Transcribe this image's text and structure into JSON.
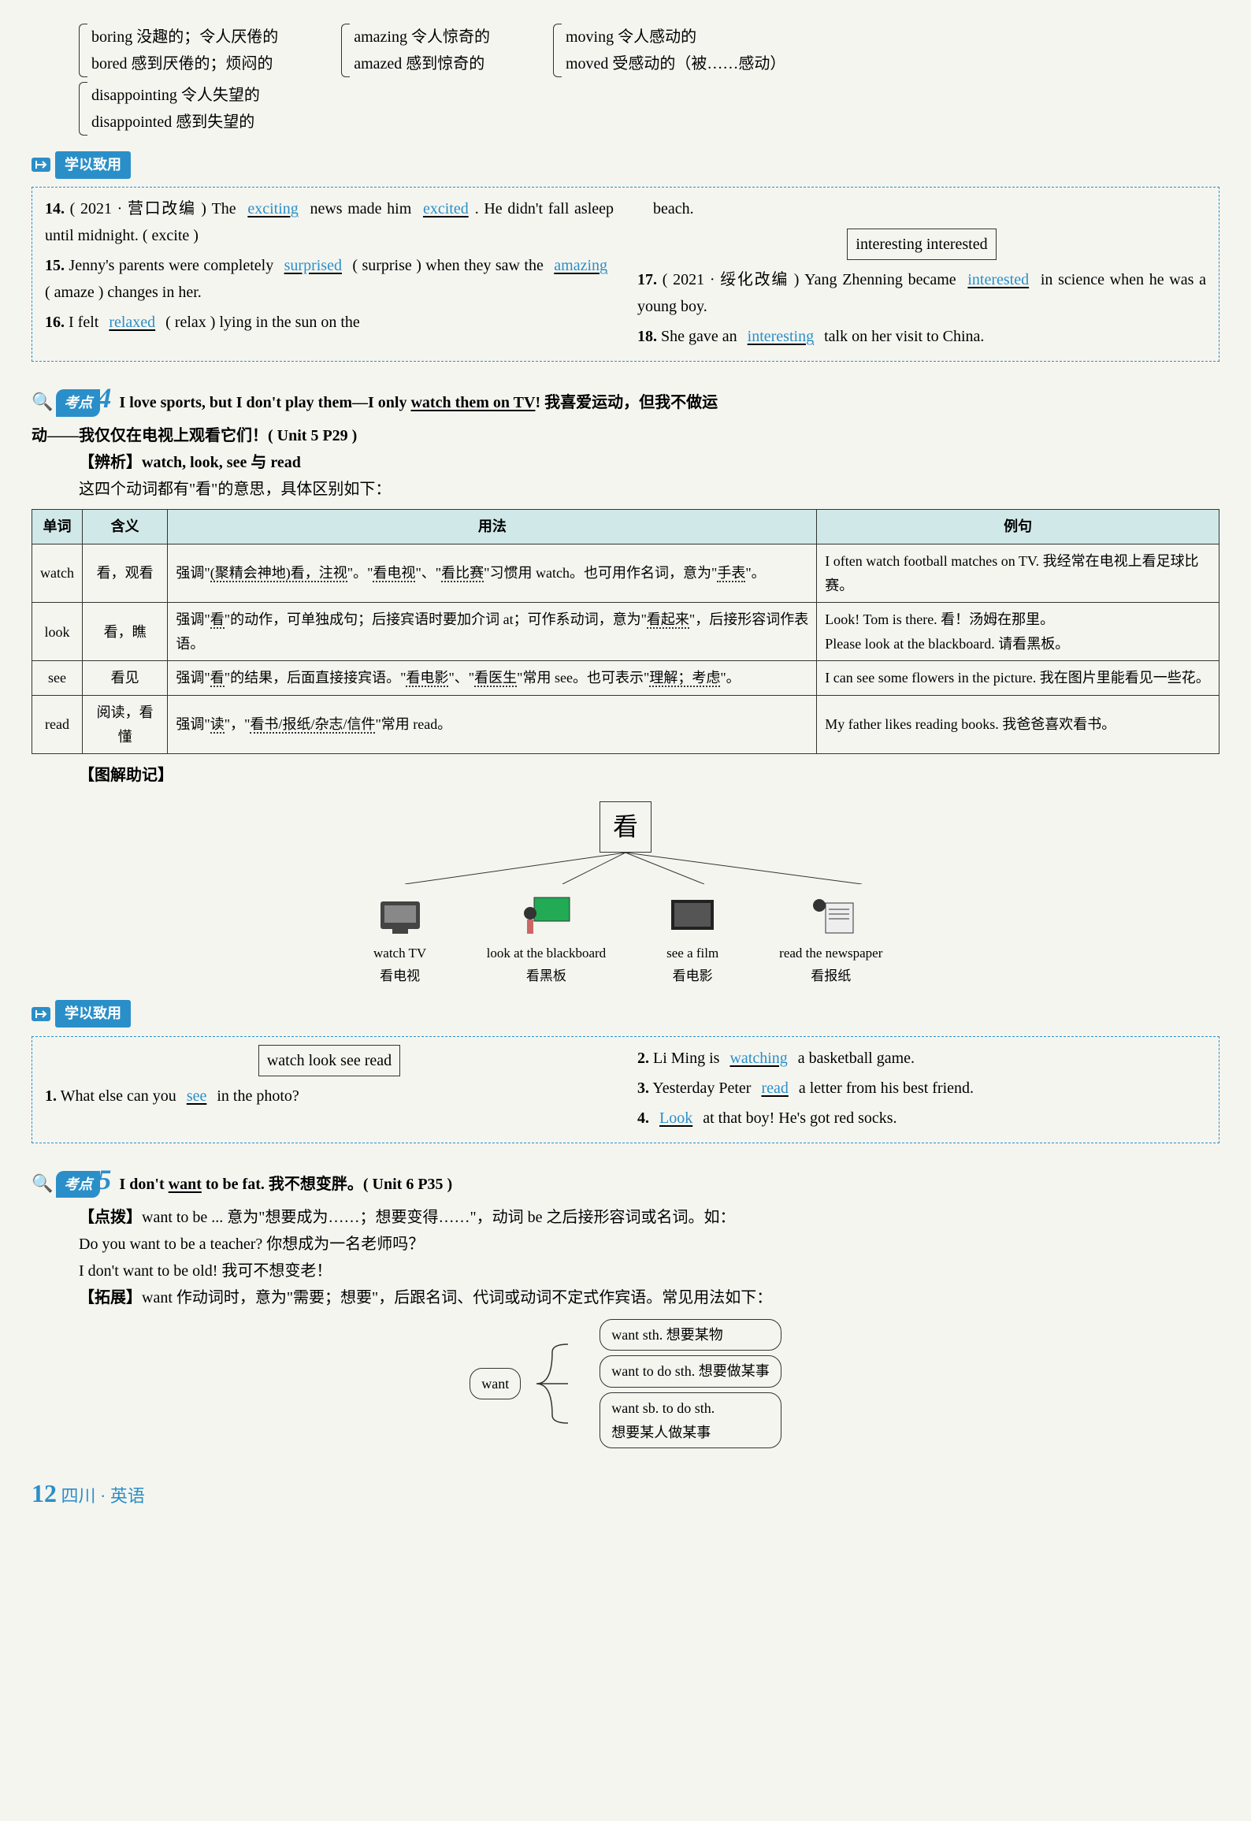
{
  "word_pairs": {
    "col1": [
      {
        "top": "boring 没趣的；令人厌倦的",
        "bottom": "bored 感到厌倦的；烦闷的"
      },
      {
        "top": "disappointing 令人失望的",
        "bottom": "disappointed 感到失望的"
      }
    ],
    "col2": [
      {
        "top": "amazing 令人惊奇的",
        "bottom": "amazed 感到惊奇的"
      }
    ],
    "col3": [
      {
        "top": "moving 令人感动的",
        "bottom": "moved 受感动的（被……感动）"
      }
    ]
  },
  "practice1_tag": "学以致用",
  "practice1": {
    "left": [
      {
        "num": "14.",
        "pre": "( 2021 · 营口改编 ) The ",
        "ans1": "exciting",
        "mid1": " news made him ",
        "ans2": "excited",
        "post": ". He didn't fall asleep until midnight. ( excite )"
      },
      {
        "num": "15.",
        "pre": "Jenny's parents were completely ",
        "ans1": "surprised",
        "mid1": " ( surprise ) when they saw the ",
        "ans2": "amazing",
        "post": " ( amaze ) changes in her."
      },
      {
        "num": "16.",
        "pre": "I felt ",
        "ans1": "relaxed",
        "post": " ( relax ) lying in the sun on the"
      }
    ],
    "right_top": "beach.",
    "right_box": "interesting   interested",
    "right": [
      {
        "num": "17.",
        "pre": "( 2021 · 绥化改编 ) Yang Zhenning became ",
        "ans1": "interested",
        "post": " in science when he was a young boy."
      },
      {
        "num": "18.",
        "pre": "She gave an ",
        "ans1": "interesting",
        "post": " talk on her visit to China."
      }
    ]
  },
  "kaodian4": {
    "label": "考点",
    "num": "4",
    "sentence_en": "I love sports, but I don't play them—I only ",
    "sentence_u": "watch them on TV",
    "sentence_cn": "! 我喜爱运动，但我不做运",
    "line2": "动——我仅仅在电视上观看它们！( Unit 5 P29 )",
    "bianxi_label": "【辨析】",
    "bianxi_words": "watch, look, see 与 read",
    "bianxi_intro": "这四个动词都有\"看\"的意思，具体区别如下："
  },
  "table": {
    "headers": [
      "单词",
      "含义",
      "用法",
      "例句"
    ],
    "rows": [
      {
        "word": "watch",
        "meaning": "看，观看",
        "usage": "强调\"(聚精会神地)看，注视\"。\"看电视\"、\"看比赛\"习惯用 watch。也可用作名词，意为\"手表\"。",
        "example": "I often watch football matches on TV. 我经常在电视上看足球比赛。"
      },
      {
        "word": "look",
        "meaning": "看，瞧",
        "usage": "强调\"看\"的动作，可单独成句；后接宾语时要加介词 at；可作系动词，意为\"看起来\"，后接形容词作表语。",
        "example": "Look! Tom is there. 看！汤姆在那里。\nPlease look at the blackboard. 请看黑板。"
      },
      {
        "word": "see",
        "meaning": "看见",
        "usage": "强调\"看\"的结果，后面直接接宾语。\"看电影\"、\"看医生\"常用 see。也可表示\"理解；考虑\"。",
        "example": "I can see some flowers in the picture. 我在图片里能看见一些花。"
      },
      {
        "word": "read",
        "meaning": "阅读，看懂",
        "usage": "强调\"读\"，\"看书/报纸/杂志/信件\"常用 read。",
        "example": "My father likes reading books. 我爸爸喜欢看书。"
      }
    ]
  },
  "tujie_label": "【图解助记】",
  "diagram": {
    "center": "看",
    "items": [
      {
        "en": "watch TV",
        "cn": "看电视"
      },
      {
        "en": "look at the blackboard",
        "cn": "看黑板"
      },
      {
        "en": "see a film",
        "cn": "看电影"
      },
      {
        "en": "read the newspaper",
        "cn": "看报纸"
      }
    ]
  },
  "practice2_tag": "学以致用",
  "practice2": {
    "box": "watch   look   see   read",
    "q1": {
      "num": "1.",
      "pre": "What else can you ",
      "ans": "see",
      "post": " in the photo?"
    },
    "q2": {
      "num": "2.",
      "pre": "Li Ming is ",
      "ans": "watching",
      "post": " a basketball game."
    },
    "q3": {
      "num": "3.",
      "pre": "Yesterday Peter ",
      "ans": "read",
      "post": " a letter from his best friend."
    },
    "q4": {
      "num": "4.",
      "ans": "Look",
      "post": " at that boy! He's got red socks."
    }
  },
  "kaodian5": {
    "label": "考点",
    "num": "5",
    "sentence_en_pre": "I don't ",
    "sentence_u": "want",
    "sentence_en_post": " to be fat. 我不想变胖。( Unit 6 P35 )",
    "dianbo_label": "【点拨】",
    "dianbo_text": "want to be ... 意为\"想要成为……；想要变得……\"，动词 be 之后接形容词或名词。如：",
    "ex1": "Do you want to be a teacher? 你想成为一名老师吗？",
    "ex2": "I don't want to be old! 我可不想变老！",
    "tuozhan_label": "【拓展】",
    "tuozhan_text": "want 作动词时，意为\"需要；想要\"，后跟名词、代词或动词不定式作宾语。常见用法如下："
  },
  "want_diagram": {
    "center": "want",
    "options": [
      "want sth. 想要某物",
      "want to do sth. 想要做某事",
      "want sb. to do sth.\n想要某人做某事"
    ]
  },
  "footer": {
    "page": "12",
    "text": "四川 · 英语"
  }
}
